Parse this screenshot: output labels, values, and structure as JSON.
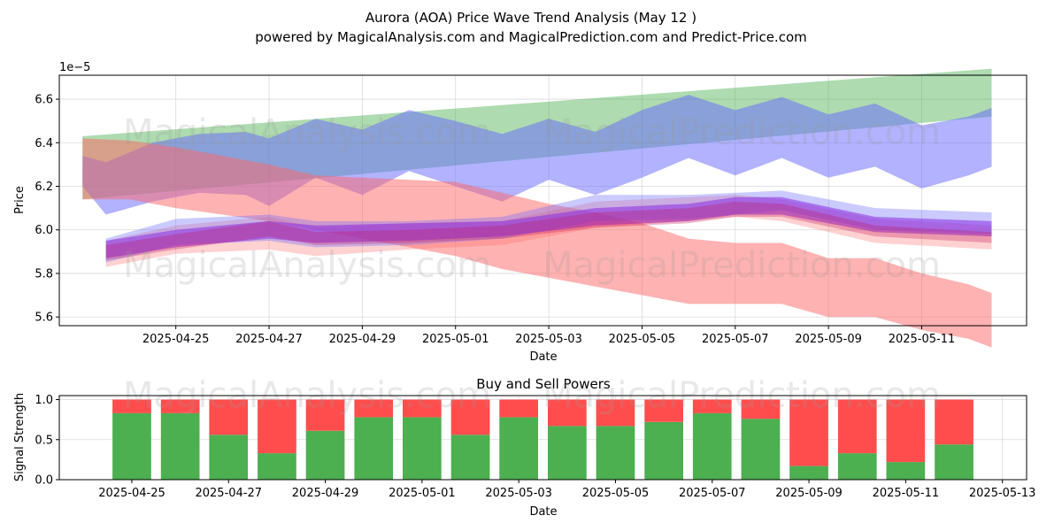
{
  "title_line1": "Aurora (AOA) Price Wave Trend Analysis (May 12 )",
  "title_line2": "powered by MagicalAnalysis.com and MagicalPrediction.com and Predict-Price.com",
  "watermarks": [
    "MagicalAnalysis.com",
    "MagicalPrediction.com"
  ],
  "chart_data": [
    {
      "type": "area",
      "title": "Aurora (AOA) Price Wave Trend Analysis (May 12 )",
      "xlabel": "Date",
      "ylabel": "Price",
      "y_offset_label": "1e−5",
      "xlim": [
        "2025-04-22T12:00",
        "2025-05-13T06:00"
      ],
      "ylim": [
        5.56,
        6.71
      ],
      "x_ticks": [
        "2025-04-25",
        "2025-04-27",
        "2025-04-29",
        "2025-05-01",
        "2025-05-03",
        "2025-05-05",
        "2025-05-07",
        "2025-05-09",
        "2025-05-11"
      ],
      "y_ticks": [
        5.6,
        5.8,
        6.0,
        6.2,
        6.4,
        6.6
      ],
      "grid": true,
      "bands": [
        {
          "color": "#4caf50",
          "opacity": 0.45,
          "x": [
            "2025-04-23T00:00",
            "2025-05-12T12:00"
          ],
          "upper": [
            6.43,
            6.74
          ],
          "lower": [
            6.14,
            6.52
          ]
        },
        {
          "color": "#6666ff",
          "opacity": 0.5,
          "x": [
            "2025-04-23T00:00",
            "2025-04-23T12:00",
            "2025-04-24T12:00",
            "2025-04-25T12:00",
            "2025-04-26T12:00",
            "2025-04-27T00:00",
            "2025-04-28T00:00",
            "2025-04-29T00:00",
            "2025-04-30T00:00",
            "2025-05-01T00:00",
            "2025-05-02T00:00",
            "2025-05-03T00:00",
            "2025-05-04T00:00",
            "2025-05-05T00:00",
            "2025-05-06T00:00",
            "2025-05-07T00:00",
            "2025-05-08T00:00",
            "2025-05-09T00:00",
            "2025-05-10T00:00",
            "2025-05-11T00:00",
            "2025-05-12T00:00",
            "2025-05-12T12:00"
          ],
          "upper": [
            6.34,
            6.31,
            6.4,
            6.44,
            6.45,
            6.42,
            6.51,
            6.46,
            6.55,
            6.5,
            6.44,
            6.51,
            6.45,
            6.55,
            6.62,
            6.55,
            6.61,
            6.53,
            6.58,
            6.48,
            6.52,
            6.56
          ],
          "lower": [
            6.2,
            6.07,
            6.13,
            6.17,
            6.16,
            6.11,
            6.24,
            6.16,
            6.27,
            6.2,
            6.13,
            6.23,
            6.16,
            6.24,
            6.33,
            6.25,
            6.33,
            6.24,
            6.29,
            6.19,
            6.25,
            6.29
          ]
        },
        {
          "color": "#ff6666",
          "opacity": 0.5,
          "x": [
            "2025-04-23T00:00",
            "2025-04-24T00:00",
            "2025-04-25T00:00",
            "2025-04-26T00:00",
            "2025-04-27T00:00",
            "2025-04-28T00:00",
            "2025-04-29T00:00",
            "2025-04-30T00:00",
            "2025-05-01T00:00",
            "2025-05-02T00:00",
            "2025-05-03T00:00",
            "2025-05-04T00:00",
            "2025-05-05T00:00",
            "2025-05-06T00:00",
            "2025-05-07T00:00",
            "2025-05-08T00:00",
            "2025-05-09T00:00",
            "2025-05-10T00:00",
            "2025-05-11T00:00",
            "2025-05-12T00:00",
            "2025-05-12T12:00"
          ],
          "upper": [
            6.42,
            6.41,
            6.38,
            6.34,
            6.3,
            6.25,
            6.24,
            6.23,
            6.22,
            6.17,
            6.12,
            6.08,
            6.03,
            5.96,
            5.94,
            5.94,
            5.87,
            5.87,
            5.8,
            5.75,
            5.71
          ],
          "lower": [
            6.14,
            6.14,
            6.1,
            6.07,
            6.04,
            6.0,
            5.96,
            5.92,
            5.88,
            5.82,
            5.78,
            5.74,
            5.7,
            5.66,
            5.66,
            5.66,
            5.6,
            5.6,
            5.54,
            5.5,
            5.46
          ]
        },
        {
          "color": "#ff6666",
          "opacity": 0.3,
          "x": [
            "2025-04-23T12:00",
            "2025-04-25T00:00",
            "2025-04-27T00:00",
            "2025-04-28T00:00",
            "2025-04-30T00:00",
            "2025-05-02T00:00",
            "2025-05-04T00:00",
            "2025-05-06T00:00",
            "2025-05-07T00:00",
            "2025-05-08T00:00",
            "2025-05-10T00:00",
            "2025-05-12T12:00"
          ],
          "upper": [
            5.95,
            6.02,
            6.06,
            6.01,
            6.03,
            6.04,
            6.13,
            6.15,
            6.16,
            6.14,
            6.05,
            6.02
          ],
          "lower": [
            5.83,
            5.89,
            5.91,
            5.88,
            5.91,
            5.93,
            6.01,
            6.04,
            6.06,
            6.04,
            5.94,
            5.91
          ]
        },
        {
          "color": "#6666ff",
          "opacity": 0.35,
          "x": [
            "2025-04-23T12:00",
            "2025-04-25T00:00",
            "2025-04-27T00:00",
            "2025-04-28T00:00",
            "2025-04-30T00:00",
            "2025-05-02T00:00",
            "2025-05-04T00:00",
            "2025-05-06T00:00",
            "2025-05-07T00:00",
            "2025-05-08T00:00",
            "2025-05-10T00:00",
            "2025-05-12T12:00"
          ],
          "upper": [
            5.96,
            6.05,
            6.07,
            6.04,
            6.04,
            6.06,
            6.16,
            6.16,
            6.17,
            6.18,
            6.1,
            6.08
          ],
          "lower": [
            5.85,
            5.93,
            5.95,
            5.92,
            5.93,
            5.96,
            6.04,
            6.05,
            6.07,
            6.09,
            6.0,
            5.98
          ]
        },
        {
          "color": "#8a2be2",
          "opacity": 0.55,
          "x": [
            "2025-04-23T12:00",
            "2025-04-25T00:00",
            "2025-04-26T00:00",
            "2025-04-27T00:00",
            "2025-04-28T00:00",
            "2025-04-30T00:00",
            "2025-05-02T00:00",
            "2025-05-04T00:00",
            "2025-05-06T00:00",
            "2025-05-07T00:00",
            "2025-05-08T00:00",
            "2025-05-10T00:00",
            "2025-05-12T12:00"
          ],
          "upper": [
            5.95,
            6.0,
            6.02,
            6.04,
            6.02,
            6.03,
            6.04,
            6.1,
            6.12,
            6.15,
            6.15,
            6.06,
            6.04
          ],
          "lower": [
            5.87,
            5.92,
            5.94,
            5.96,
            5.94,
            5.95,
            5.97,
            6.02,
            6.04,
            6.07,
            6.07,
            5.99,
            5.97
          ]
        },
        {
          "color": "#c2185b",
          "opacity": 0.3,
          "x": [
            "2025-04-23T12:00",
            "2025-04-25T00:00",
            "2025-04-26T00:00",
            "2025-04-27T00:00",
            "2025-04-28T00:00",
            "2025-04-30T00:00",
            "2025-05-02T00:00",
            "2025-05-04T00:00",
            "2025-05-06T00:00",
            "2025-05-07T00:00",
            "2025-05-08T00:00",
            "2025-05-10T00:00",
            "2025-05-12T12:00"
          ],
          "upper": [
            5.93,
            5.98,
            6.01,
            6.04,
            5.99,
            6.0,
            6.02,
            6.08,
            6.1,
            6.13,
            6.12,
            6.02,
            5.99
          ],
          "lower": [
            5.86,
            5.91,
            5.94,
            5.97,
            5.93,
            5.94,
            5.96,
            6.01,
            6.03,
            6.06,
            6.06,
            5.97,
            5.94
          ]
        }
      ]
    },
    {
      "type": "bar",
      "title": "Buy and Sell Powers",
      "xlabel": "Date",
      "ylabel": "Signal Strength",
      "xlim": [
        "2025-04-23T12:00",
        "2025-05-13T12:00"
      ],
      "ylim": [
        0,
        1.05
      ],
      "x_ticks": [
        "2025-04-25",
        "2025-04-27",
        "2025-04-29",
        "2025-05-01",
        "2025-05-03",
        "2025-05-05",
        "2025-05-07",
        "2025-05-09",
        "2025-05-11",
        "2025-05-13"
      ],
      "y_ticks": [
        0.0,
        0.5,
        1.0
      ],
      "grid": true,
      "categories": [
        "2025-04-25",
        "2025-04-26",
        "2025-04-27",
        "2025-04-28",
        "2025-04-29",
        "2025-04-30",
        "2025-05-01",
        "2025-05-02",
        "2025-05-03",
        "2025-05-04",
        "2025-05-05",
        "2025-05-06",
        "2025-05-07",
        "2025-05-08",
        "2025-05-09",
        "2025-05-10",
        "2025-05-11",
        "2025-05-12"
      ],
      "series": [
        {
          "color": "#4caf50",
          "values": [
            0.83,
            0.83,
            0.56,
            0.33,
            0.61,
            0.78,
            0.78,
            0.56,
            0.78,
            0.67,
            0.67,
            0.72,
            0.83,
            0.76,
            0.17,
            0.33,
            0.22,
            0.44
          ]
        },
        {
          "color": "#ff4d4d",
          "values": [
            0.17,
            0.17,
            0.44,
            0.67,
            0.39,
            0.22,
            0.22,
            0.44,
            0.22,
            0.33,
            0.33,
            0.28,
            0.17,
            0.24,
            0.83,
            0.67,
            0.78,
            0.56
          ]
        }
      ]
    }
  ]
}
